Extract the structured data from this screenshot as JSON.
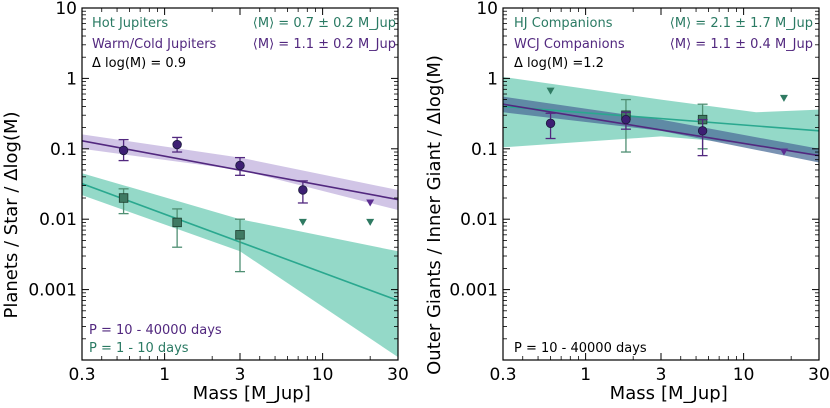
{
  "colors": {
    "purple": "#52287f",
    "purple_band": "#b9a6d8",
    "green": "#2a7a63",
    "teal_line": "#2aa88f",
    "teal_band": "#4dbfa4",
    "steel_band": "#4e6f9a"
  },
  "chart_data": [
    {
      "type": "scatter",
      "id": "left",
      "xlabel_text": "Mass",
      "xlabel_unit": "[M_Jup]",
      "ylabel": "Planets / Star / Δlog(M)",
      "xscale": "log",
      "yscale": "log",
      "xlim": [
        0.3,
        30
      ],
      "ylim": [
        0.0001,
        10
      ],
      "xticks": [
        {
          "v": 0.3,
          "label": "0.3"
        },
        {
          "v": 1,
          "label": "1"
        },
        {
          "v": 3,
          "label": "3"
        },
        {
          "v": 10,
          "label": "10"
        },
        {
          "v": 30,
          "label": "30"
        }
      ],
      "yticks": [
        {
          "v": 0.001,
          "label": "0.001"
        },
        {
          "v": 0.01,
          "label": "0.01"
        },
        {
          "v": 0.1,
          "label": "0.1"
        },
        {
          "v": 1,
          "label": "1"
        },
        {
          "v": 10,
          "label": "10"
        }
      ],
      "legend": {
        "series1": "Hot Jupiters",
        "series2": "Warm/Cold Jupiters",
        "mean1": "⟨M⟩ = 0.7 ± 0.2 M_Jup",
        "mean2": "⟨M⟩ = 1.1 ± 0.2 M_Jup",
        "dlog": "Δ log(M) = 0.9",
        "period1": "P = 10 - 40000 days",
        "period2": "P = 1 - 10 days"
      },
      "series": [
        {
          "name": "Warm/Cold Jupiters",
          "color": "purple",
          "marker": "circle",
          "points": [
            {
              "x": 0.55,
              "y": 0.095,
              "lo": 0.068,
              "hi": 0.135
            },
            {
              "x": 1.2,
              "y": 0.115,
              "lo": 0.09,
              "hi": 0.145
            },
            {
              "x": 3.0,
              "y": 0.058,
              "lo": 0.042,
              "hi": 0.075
            },
            {
              "x": 7.5,
              "y": 0.026,
              "lo": 0.017,
              "hi": 0.035
            }
          ],
          "upper_limits": [
            {
              "x": 20,
              "y": 0.017
            }
          ],
          "fit_line": [
            [
              0.3,
              0.13
            ],
            [
              30,
              0.019
            ]
          ],
          "band_upper": [
            [
              0.3,
              0.16
            ],
            [
              3,
              0.075
            ],
            [
              30,
              0.026
            ]
          ],
          "band_lower": [
            [
              0.3,
              0.1
            ],
            [
              3,
              0.05
            ],
            [
              30,
              0.0135
            ]
          ]
        },
        {
          "name": "Hot Jupiters",
          "color": "green",
          "marker": "square",
          "points": [
            {
              "x": 0.55,
              "y": 0.02,
              "lo": 0.012,
              "hi": 0.027
            },
            {
              "x": 1.2,
              "y": 0.009,
              "lo": 0.004,
              "hi": 0.014
            },
            {
              "x": 3.0,
              "y": 0.006,
              "lo": 0.0018,
              "hi": 0.01
            }
          ],
          "upper_limits": [
            {
              "x": 7.5,
              "y": 0.009
            },
            {
              "x": 20,
              "y": 0.009
            }
          ],
          "fit_line": [
            [
              0.3,
              0.032
            ],
            [
              30,
              0.0007
            ]
          ],
          "band_upper": [
            [
              0.3,
              0.045
            ],
            [
              3,
              0.01
            ],
            [
              30,
              0.0035
            ]
          ],
          "band_lower": [
            [
              0.3,
              0.022
            ],
            [
              3,
              0.0035
            ],
            [
              30,
              0.00011
            ]
          ]
        }
      ]
    },
    {
      "type": "scatter",
      "id": "right",
      "xlabel_text": "Mass",
      "xlabel_unit": "[M_Jup]",
      "ylabel": "Outer Giants / Inner Giant / Δlog(M)",
      "xscale": "log",
      "yscale": "log",
      "xlim": [
        0.3,
        30
      ],
      "ylim": [
        0.0001,
        10
      ],
      "xticks": [
        {
          "v": 0.3,
          "label": "0.3"
        },
        {
          "v": 1,
          "label": "1"
        },
        {
          "v": 3,
          "label": "3"
        },
        {
          "v": 10,
          "label": "10"
        },
        {
          "v": 30,
          "label": "30"
        }
      ],
      "yticks": [
        {
          "v": 0.001,
          "label": "0.001"
        },
        {
          "v": 0.01,
          "label": "0.01"
        },
        {
          "v": 0.1,
          "label": "0.1"
        },
        {
          "v": 1,
          "label": "1"
        },
        {
          "v": 10,
          "label": "10"
        }
      ],
      "legend": {
        "series1": "HJ Companions",
        "series2": "WCJ Companions",
        "mean1": "⟨M⟩ = 2.1 ± 1.7 M_Jup",
        "mean2": "⟨M⟩ = 1.1 ± 0.4 M_Jup",
        "dlog": "Δ log(M) =1.2",
        "period1": "P = 10 - 40000 days"
      },
      "series": [
        {
          "name": "HJ Companions",
          "color": "green",
          "marker": "square",
          "points": [
            {
              "x": 1.8,
              "y": 0.3,
              "lo": 0.09,
              "hi": 0.5
            },
            {
              "x": 5.5,
              "y": 0.26,
              "lo": 0.1,
              "hi": 0.43
            }
          ],
          "upper_limits": [
            {
              "x": 0.6,
              "y": 0.66
            },
            {
              "x": 18,
              "y": 0.52
            }
          ],
          "fit_line": [
            [
              0.3,
              0.4
            ],
            [
              30,
              0.18
            ]
          ],
          "band_upper": [
            [
              0.3,
              1.05
            ],
            [
              3,
              0.5
            ],
            [
              12,
              0.33
            ],
            [
              30,
              0.36
            ]
          ],
          "band_lower": [
            [
              0.3,
              0.105
            ],
            [
              3,
              0.15
            ],
            [
              10,
              0.12
            ],
            [
              30,
              0.08
            ]
          ]
        },
        {
          "name": "WCJ Companions",
          "color": "purple",
          "marker": "circle",
          "points": [
            {
              "x": 0.6,
              "y": 0.23,
              "lo": 0.14,
              "hi": 0.32
            },
            {
              "x": 1.8,
              "y": 0.26,
              "lo": 0.19,
              "hi": 0.33
            },
            {
              "x": 5.5,
              "y": 0.18,
              "lo": 0.08,
              "hi": 0.26
            }
          ],
          "upper_limits": [
            {
              "x": 18,
              "y": 0.09
            }
          ],
          "fit_line": [
            [
              0.3,
              0.43
            ],
            [
              30,
              0.08
            ]
          ],
          "band_upper": [
            [
              0.3,
              0.55
            ],
            [
              3,
              0.26
            ],
            [
              30,
              0.1
            ]
          ],
          "band_lower": [
            [
              0.3,
              0.33
            ],
            [
              3,
              0.18
            ],
            [
              30,
              0.064
            ]
          ]
        }
      ]
    }
  ]
}
